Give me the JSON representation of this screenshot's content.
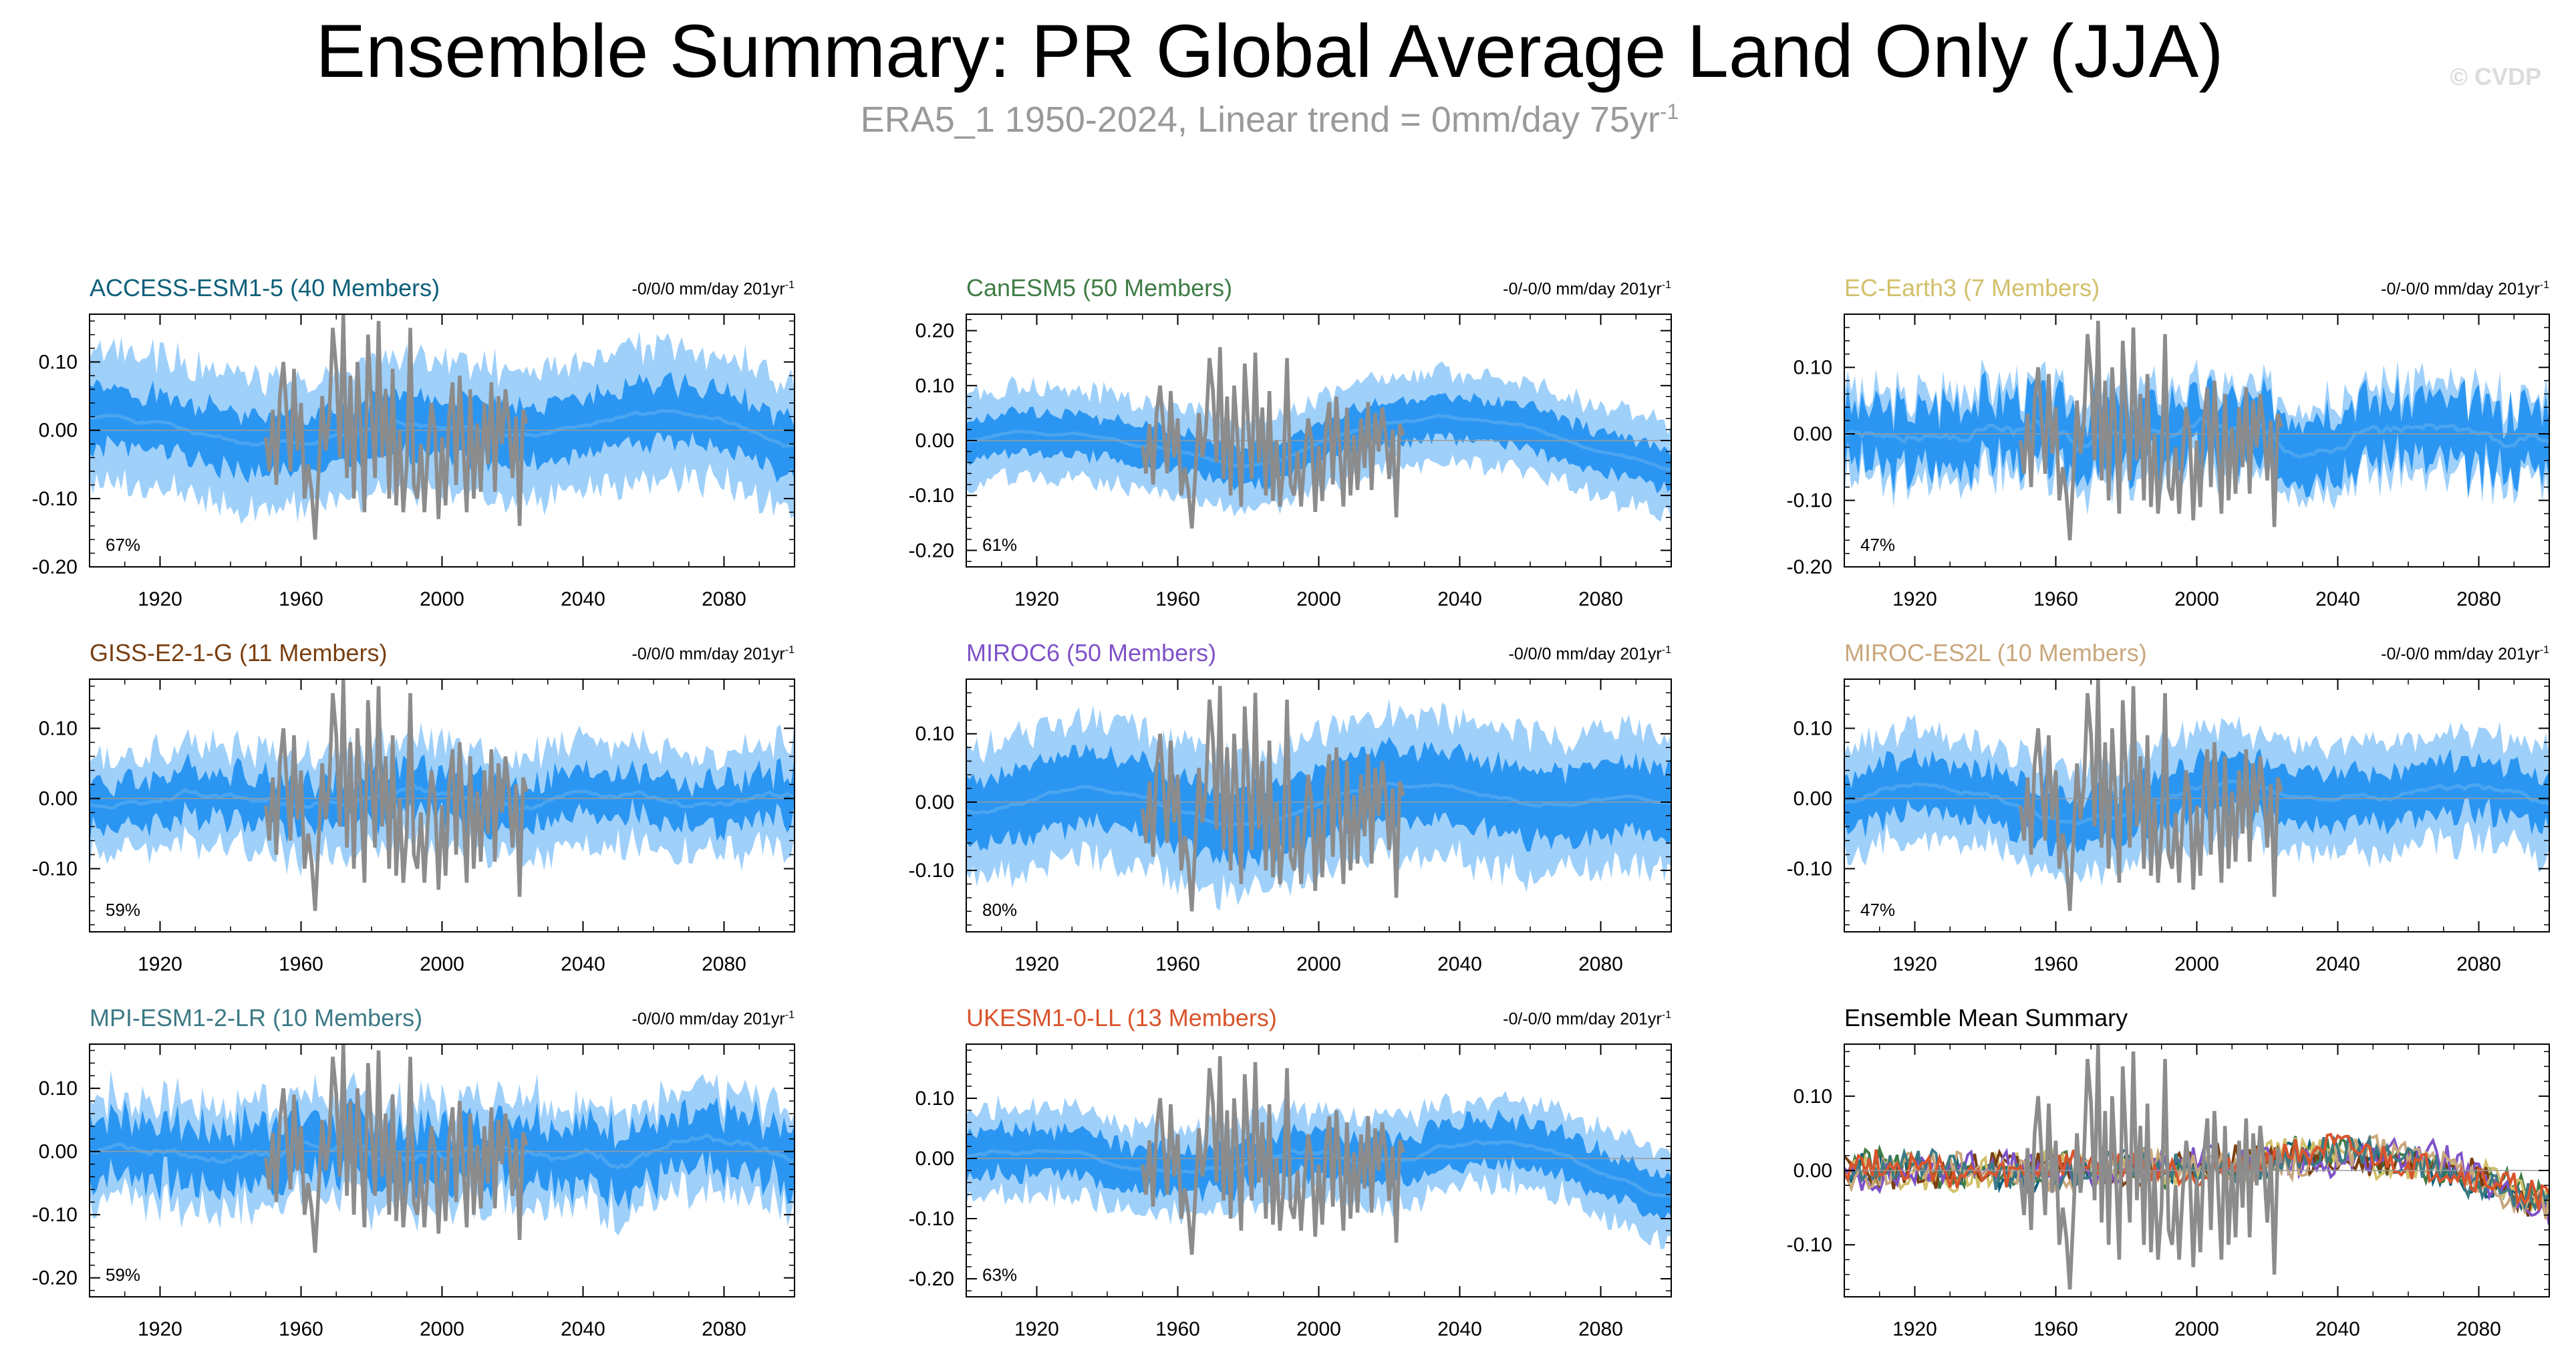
{
  "header": {
    "title": "Ensemble Summary: PR Global Average Land Only (JJA)",
    "subtitle_main": "ERA5_1 1950-2024, Linear trend = 0mm/day 75yr",
    "subtitle_exp": "-1",
    "watermark": "© CVDP"
  },
  "colors": {
    "band_outer": "#9fd0fa",
    "band_inner": "#2b96f2",
    "ens_mean": "#4aa5f0",
    "observed": "#8c8c8c"
  },
  "chart_data": [
    {
      "type": "line",
      "id": "p0",
      "title": "ACCESS-ESM1-5 (40 Members)",
      "title_color": "#0d5f7a",
      "trend_text": "-0/0/0 mm/day 201yr",
      "trend_exp": "-1",
      "percent_label": "67%",
      "xlim": [
        1900,
        2100
      ],
      "ylim": [
        -0.2,
        0.17
      ],
      "ytick_values": [
        -0.2,
        -0.1,
        0.0,
        0.1
      ],
      "ytick_labels": [
        "-0.20",
        "-0.10",
        "0.00",
        "0.10"
      ],
      "xtick_values": [
        1920,
        1960,
        2000,
        2040,
        2080
      ],
      "xtick_labels": [
        "1920",
        "1960",
        "2000",
        "2040",
        "2080"
      ],
      "shape": "wave",
      "seed": 1,
      "outer_spread": 0.1,
      "inner_spread": 0.045,
      "noise": 0.012
    },
    {
      "type": "line",
      "id": "p1",
      "title": "CanESM5 (50 Members)",
      "title_color": "#3f7c45",
      "trend_text": "-0/-0/0 mm/day 201yr",
      "trend_exp": "-1",
      "percent_label": "61%",
      "xlim": [
        1900,
        2100
      ],
      "ylim": [
        -0.23,
        0.23
      ],
      "ytick_values": [
        -0.2,
        -0.1,
        0.0,
        0.1,
        0.2
      ],
      "ytick_labels": [
        "-0.20",
        "-0.10",
        "0.00",
        "0.10",
        "0.20"
      ],
      "xtick_values": [
        1920,
        1960,
        2000,
        2040,
        2080
      ],
      "xtick_labels": [
        "1920",
        "1960",
        "2000",
        "2040",
        "2080"
      ],
      "shape": "canesm",
      "seed": 2,
      "outer_spread": 0.085,
      "inner_spread": 0.04,
      "noise": 0.008
    },
    {
      "type": "line",
      "id": "p2",
      "title": "EC-Earth3 (7 Members)",
      "title_color": "#d2c06a",
      "trend_text": "-0/-0/0 mm/day 201yr",
      "trend_exp": "-1",
      "percent_label": "47%",
      "xlim": [
        1900,
        2100
      ],
      "ylim": [
        -0.2,
        0.18
      ],
      "ytick_values": [
        -0.2,
        -0.1,
        0.0,
        0.1
      ],
      "ytick_labels": [
        "-0.20",
        "-0.10",
        "0.00",
        "0.10"
      ],
      "xtick_values": [
        1920,
        1960,
        2000,
        2040,
        2080
      ],
      "xtick_labels": [
        "1920",
        "1960",
        "2000",
        "2040",
        "2080"
      ],
      "shape": "flat",
      "seed": 3,
      "outer_spread": 0.07,
      "inner_spread": 0.05,
      "noise": 0.035
    },
    {
      "type": "line",
      "id": "p3",
      "title": "GISS-E2-1-G (11 Members)",
      "title_color": "#7a3f10",
      "trend_text": "-0/0/0 mm/day 201yr",
      "trend_exp": "-1",
      "percent_label": "59%",
      "xlim": [
        1900,
        2100
      ],
      "ylim": [
        -0.19,
        0.17
      ],
      "ytick_values": [
        -0.1,
        0.0,
        0.1
      ],
      "ytick_labels": [
        "-0.10",
        "0.00",
        "0.10"
      ],
      "xtick_values": [
        1920,
        1960,
        2000,
        2040,
        2080
      ],
      "xtick_labels": [
        "1920",
        "1960",
        "2000",
        "2040",
        "2080"
      ],
      "shape": "flat",
      "seed": 4,
      "outer_spread": 0.075,
      "inner_spread": 0.035,
      "noise": 0.02
    },
    {
      "type": "line",
      "id": "p4",
      "title": "MIROC6 (50 Members)",
      "title_color": "#7e52c9",
      "trend_text": "-0/0/0 mm/day 201yr",
      "trend_exp": "-1",
      "percent_label": "80%",
      "xlim": [
        1900,
        2100
      ],
      "ylim": [
        -0.19,
        0.18
      ],
      "ytick_values": [
        -0.1,
        0.0,
        0.1
      ],
      "ytick_labels": [
        "-0.10",
        "0.00",
        "0.10"
      ],
      "xtick_values": [
        1920,
        1960,
        2000,
        2040,
        2080
      ],
      "xtick_labels": [
        "1920",
        "1960",
        "2000",
        "2040",
        "2080"
      ],
      "shape": "wave",
      "seed": 5,
      "outer_spread": 0.105,
      "inner_spread": 0.055,
      "noise": 0.01
    },
    {
      "type": "line",
      "id": "p5",
      "title": "MIROC-ES2L (10 Members)",
      "title_color": "#c9a77c",
      "trend_text": "-0/-0/0 mm/day 201yr",
      "trend_exp": "-1",
      "percent_label": "47%",
      "xlim": [
        1900,
        2100
      ],
      "ylim": [
        -0.19,
        0.17
      ],
      "ytick_values": [
        -0.1,
        0.0,
        0.1
      ],
      "ytick_labels": [
        "-0.10",
        "0.00",
        "0.10"
      ],
      "xtick_values": [
        1920,
        1960,
        2000,
        2040,
        2080
      ],
      "xtick_labels": [
        "1920",
        "1960",
        "2000",
        "2040",
        "2080"
      ],
      "shape": "wave",
      "seed": 6,
      "outer_spread": 0.08,
      "inner_spread": 0.04,
      "noise": 0.015
    },
    {
      "type": "line",
      "id": "p6",
      "title": "MPI-ESM1-2-LR (10 Members)",
      "title_color": "#3c7a84",
      "trend_text": "-0/0/0 mm/day 201yr",
      "trend_exp": "-1",
      "percent_label": "59%",
      "xlim": [
        1900,
        2100
      ],
      "ylim": [
        -0.23,
        0.17
      ],
      "ytick_values": [
        -0.2,
        -0.1,
        0.0,
        0.1
      ],
      "ytick_labels": [
        "-0.20",
        "-0.10",
        "0.00",
        "0.10"
      ],
      "xtick_values": [
        1920,
        1960,
        2000,
        2040,
        2080
      ],
      "xtick_labels": [
        "1920",
        "1960",
        "2000",
        "2040",
        "2080"
      ],
      "shape": "flat",
      "seed": 7,
      "outer_spread": 0.085,
      "inner_spread": 0.05,
      "noise": 0.03
    },
    {
      "type": "line",
      "id": "p7",
      "title": "UKESM1-0-LL (13 Members)",
      "title_color": "#d9542c",
      "trend_text": "-0/-0/0 mm/day 201yr",
      "trend_exp": "-1",
      "percent_label": "63%",
      "xlim": [
        1900,
        2100
      ],
      "ylim": [
        -0.23,
        0.19
      ],
      "ytick_values": [
        -0.2,
        -0.1,
        0.0,
        0.1
      ],
      "ytick_labels": [
        "-0.20",
        "-0.10",
        "0.00",
        "0.10"
      ],
      "xtick_values": [
        1920,
        1960,
        2000,
        2040,
        2080
      ],
      "xtick_labels": [
        "1920",
        "1960",
        "2000",
        "2040",
        "2080"
      ],
      "shape": "ukesm",
      "seed": 8,
      "outer_spread": 0.075,
      "inner_spread": 0.04,
      "noise": 0.015
    },
    {
      "type": "line",
      "id": "p8",
      "title": "Ensemble Mean Summary",
      "title_color": "#000000",
      "trend_text": "",
      "trend_exp": "",
      "percent_label": "",
      "xlim": [
        1900,
        2100
      ],
      "ylim": [
        -0.17,
        0.17
      ],
      "ytick_values": [
        -0.1,
        0.0,
        0.1
      ],
      "ytick_labels": [
        "-0.10",
        "0.00",
        "0.10"
      ],
      "xtick_values": [
        1920,
        1960,
        2000,
        2040,
        2080
      ],
      "xtick_labels": [
        "1920",
        "1960",
        "2000",
        "2040",
        "2080"
      ],
      "shape": "summary",
      "seed": 9,
      "series_colors": [
        "#0d5f7a",
        "#3f7c45",
        "#d2c06a",
        "#7a3f10",
        "#7e52c9",
        "#c9a77c",
        "#3c7a84",
        "#d9542c"
      ]
    }
  ],
  "observed": {
    "name": "ERA5_1",
    "years": [
      1950,
      1951,
      1952,
      1953,
      1954,
      1955,
      1956,
      1957,
      1958,
      1959,
      1960,
      1961,
      1962,
      1963,
      1964,
      1965,
      1966,
      1967,
      1968,
      1969,
      1970,
      1971,
      1972,
      1973,
      1974,
      1975,
      1976,
      1977,
      1978,
      1979,
      1980,
      1981,
      1982,
      1983,
      1984,
      1985,
      1986,
      1987,
      1988,
      1989,
      1990,
      1991,
      1992,
      1993,
      1994,
      1995,
      1996,
      1997,
      1998,
      1999,
      2000,
      2001,
      2002,
      2003,
      2004,
      2005,
      2006,
      2007,
      2008,
      2009,
      2010,
      2011,
      2012,
      2013,
      2014,
      2015,
      2016,
      2017,
      2018,
      2019,
      2020,
      2021,
      2022,
      2023,
      2024
    ],
    "values": [
      -0.01,
      -0.06,
      0.03,
      -0.08,
      0.05,
      0.1,
      0.02,
      -0.06,
      0.09,
      -0.03,
      0.04,
      -0.1,
      -0.05,
      -0.09,
      -0.16,
      -0.06,
      0.05,
      -0.03,
      0.02,
      0.15,
      0.09,
      -0.04,
      0.17,
      -0.07,
      0.08,
      -0.1,
      0.1,
      0.0,
      -0.12,
      0.14,
      0.03,
      -0.07,
      0.16,
      -0.04,
      0.06,
      -0.1,
      0.09,
      -0.11,
      0.0,
      -0.12,
      -0.05,
      0.15,
      -0.08,
      -0.1,
      -0.02,
      -0.12,
      -0.03,
      0.04,
      0.0,
      -0.13,
      -0.01,
      -0.11,
      0.02,
      0.07,
      -0.08,
      0.08,
      -0.02,
      -0.12,
      0.06,
      -0.1,
      0.01,
      -0.09,
      0.04,
      -0.05,
      0.07,
      -0.09,
      0.05,
      -0.02,
      0.06,
      0.01,
      -0.07,
      0.02,
      -0.14,
      0.03,
      0.01
    ]
  }
}
